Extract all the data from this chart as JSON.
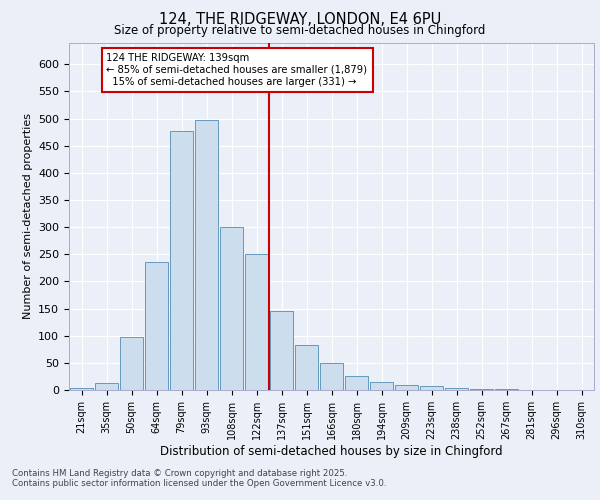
{
  "title1": "124, THE RIDGEWAY, LONDON, E4 6PU",
  "title2": "Size of property relative to semi-detached houses in Chingford",
  "xlabel": "Distribution of semi-detached houses by size in Chingford",
  "ylabel": "Number of semi-detached properties",
  "categories": [
    "21sqm",
    "35sqm",
    "50sqm",
    "64sqm",
    "79sqm",
    "93sqm",
    "108sqm",
    "122sqm",
    "137sqm",
    "151sqm",
    "166sqm",
    "180sqm",
    "194sqm",
    "209sqm",
    "223sqm",
    "238sqm",
    "252sqm",
    "267sqm",
    "281sqm",
    "296sqm",
    "310sqm"
  ],
  "values": [
    3,
    13,
    97,
    235,
    477,
    497,
    300,
    250,
    145,
    82,
    50,
    25,
    15,
    10,
    8,
    4,
    2,
    1,
    0,
    0,
    0
  ],
  "bar_color": "#ccdded",
  "bar_edge_color": "#6699bb",
  "highlight_value": "139sqm",
  "pct_smaller": 85,
  "n_smaller": 1879,
  "pct_larger": 15,
  "n_larger": 331,
  "annotation_box_color": "#cc0000",
  "red_line_color": "#cc0000",
  "ylim": [
    0,
    640
  ],
  "yticks": [
    0,
    50,
    100,
    150,
    200,
    250,
    300,
    350,
    400,
    450,
    500,
    550,
    600
  ],
  "bg_color": "#eaeff8",
  "plot_bg_color": "#eaeff8",
  "grid_color": "#ffffff",
  "footer1": "Contains HM Land Registry data © Crown copyright and database right 2025.",
  "footer2": "Contains public sector information licensed under the Open Government Licence v3.0."
}
